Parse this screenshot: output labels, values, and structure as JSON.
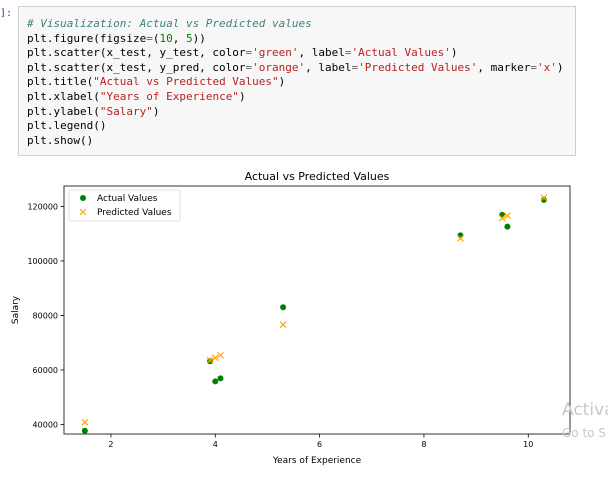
{
  "cell": {
    "prompt": "]:",
    "lines": [
      [
        [
          "com",
          "# Visualization: Actual vs Predicted values"
        ]
      ],
      [
        [
          "txt",
          "plt.figure(figsize"
        ],
        [
          "op",
          "="
        ],
        [
          "txt",
          "("
        ],
        [
          "num",
          "10"
        ],
        [
          "txt",
          ", "
        ],
        [
          "num",
          "5"
        ],
        [
          "txt",
          "))"
        ]
      ],
      [
        [
          "txt",
          "plt.scatter(x_test, y_test, color"
        ],
        [
          "op",
          "="
        ],
        [
          "str",
          "'green'"
        ],
        [
          "txt",
          ", label"
        ],
        [
          "op",
          "="
        ],
        [
          "str",
          "'Actual Values'"
        ],
        [
          "txt",
          ")"
        ]
      ],
      [
        [
          "txt",
          "plt.scatter(x_test, y_pred, color"
        ],
        [
          "op",
          "="
        ],
        [
          "str",
          "'orange'"
        ],
        [
          "txt",
          ", label"
        ],
        [
          "op",
          "="
        ],
        [
          "str",
          "'Predicted Values'"
        ],
        [
          "txt",
          ", marker"
        ],
        [
          "op",
          "="
        ],
        [
          "str",
          "'x'"
        ],
        [
          "txt",
          ")"
        ]
      ],
      [
        [
          "txt",
          "plt.title("
        ],
        [
          "str",
          "\"Actual vs Predicted Values\""
        ],
        [
          "txt",
          ")"
        ]
      ],
      [
        [
          "txt",
          "plt.xlabel("
        ],
        [
          "str",
          "\"Years of Experience\""
        ],
        [
          "txt",
          ")"
        ]
      ],
      [
        [
          "txt",
          "plt.ylabel("
        ],
        [
          "str",
          "\"Salary\""
        ],
        [
          "txt",
          ")"
        ]
      ],
      [
        [
          "txt",
          "plt.legend()"
        ]
      ],
      [
        [
          "txt",
          "plt.show()"
        ]
      ]
    ]
  },
  "chart_data": {
    "type": "scatter",
    "title": "Actual vs Predicted Values",
    "xlabel": "Years of Experience",
    "ylabel": "Salary",
    "xlim": [
      1.1,
      10.8
    ],
    "ylim": [
      36500,
      127500
    ],
    "xticks": [
      2,
      4,
      6,
      8,
      10
    ],
    "yticks": [
      40000,
      60000,
      80000,
      100000,
      120000
    ],
    "ytick_labels": [
      "40000",
      "60000",
      "80000",
      "100000",
      "120000"
    ],
    "grid": false,
    "legend_position": "top-left",
    "series": [
      {
        "name": "Actual Values",
        "color": "#008000",
        "marker": "circle",
        "x": [
          1.5,
          3.9,
          4.0,
          4.1,
          5.3,
          8.7,
          9.5,
          9.6,
          10.3
        ],
        "y": [
          37700,
          63200,
          55800,
          56900,
          83000,
          109400,
          116900,
          112600,
          122400
        ]
      },
      {
        "name": "Predicted Values",
        "color": "#ffa500",
        "marker": "x",
        "x": [
          1.5,
          3.9,
          4.0,
          4.1,
          5.3,
          8.7,
          9.5,
          9.6,
          10.3
        ],
        "y": [
          40800,
          63600,
          64500,
          65400,
          76600,
          108300,
          115700,
          116600,
          123200
        ]
      }
    ]
  },
  "watermark": {
    "line1": "Activa",
    "line2": "Go to S"
  }
}
